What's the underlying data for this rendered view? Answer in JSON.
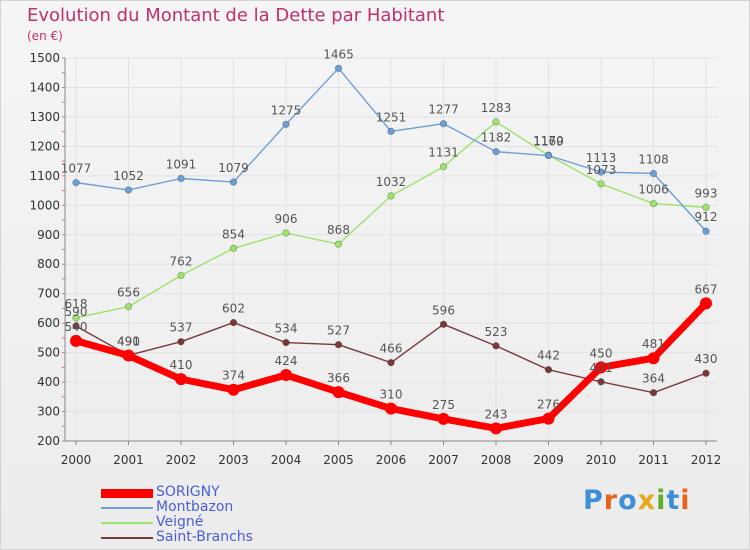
{
  "title": "Evolution du Montant de la Dette par Habitant",
  "unit_label": "(en €)",
  "chart_data": {
    "type": "line",
    "title": "Evolution du Montant de la Dette par Habitant",
    "subtitle": "(en €)",
    "x": [
      "2000",
      "2001",
      "2002",
      "2003",
      "2004",
      "2005",
      "2006",
      "2007",
      "2008",
      "2009",
      "2010",
      "2011",
      "2012"
    ],
    "ylim": [
      200,
      1500
    ],
    "yticks": [
      200,
      300,
      400,
      500,
      600,
      700,
      800,
      900,
      1000,
      1100,
      1200,
      1300,
      1400,
      1500
    ],
    "grid": true,
    "legend_position": "bottom-left",
    "series": [
      {
        "name": "SORIGNY",
        "color": "#ff0000",
        "label_color": "#555555",
        "values": [
          540,
          490,
          410,
          374,
          424,
          366,
          310,
          275,
          243,
          276,
          450,
          481,
          667
        ]
      },
      {
        "name": "Montbazon",
        "color": "#6b9fd6",
        "label_color": "#555555",
        "values": [
          1077,
          1052,
          1091,
          1079,
          1275,
          1465,
          1251,
          1277,
          1182,
          1169,
          1113,
          1108,
          912
        ]
      },
      {
        "name": "Veigné",
        "color": "#9be36b",
        "label_color": "#555555",
        "values": [
          618,
          656,
          762,
          854,
          906,
          868,
          1032,
          1131,
          1283,
          1170,
          1073,
          1006,
          993
        ]
      },
      {
        "name": "Saint-Branchs",
        "color": "#7a3a3a",
        "label_color": "#555555",
        "values": [
          590,
          491,
          537,
          602,
          534,
          527,
          466,
          596,
          523,
          442,
          401,
          364,
          430
        ]
      }
    ]
  },
  "legend": {
    "items": [
      {
        "label": "SORIGNY",
        "color": "#ff0000",
        "text_color": "#4a5fd6"
      },
      {
        "label": "Montbazon",
        "color": "#6b9fd6",
        "text_color": "#4a5fd6"
      },
      {
        "label": "Veigné",
        "color": "#9be36b",
        "text_color": "#4a5fd6"
      },
      {
        "label": "Saint-Branchs",
        "color": "#7a3a3a",
        "text_color": "#4a5fd6"
      }
    ]
  },
  "logo": {
    "text": "Proxiti",
    "letter_colors": [
      "#3c8fd8",
      "#e8631e",
      "#3c8fd8",
      "#e8a81e",
      "#5fb02a",
      "#3c8fd8",
      "#e8631e"
    ]
  }
}
